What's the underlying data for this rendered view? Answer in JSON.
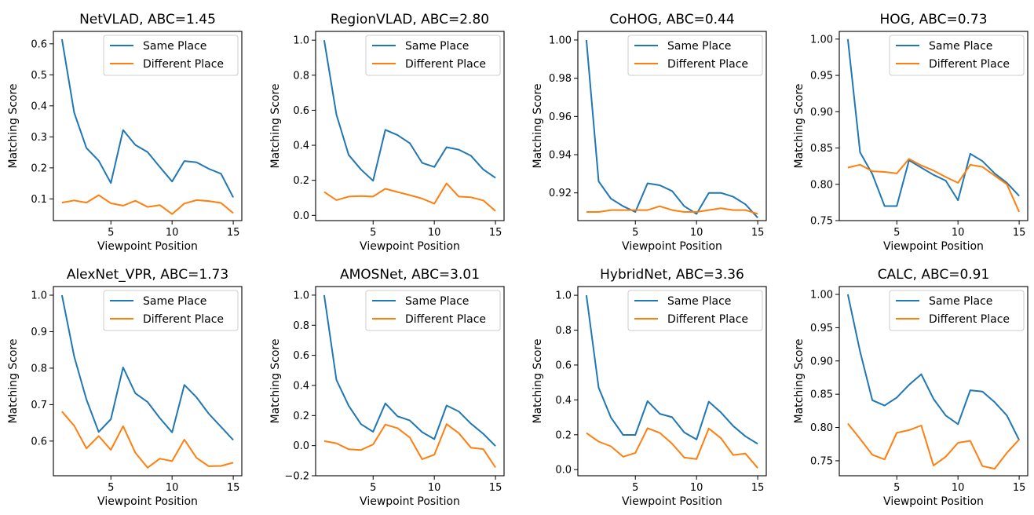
{
  "figure": {
    "line_colors": [
      "#1f77b4",
      "#ff7f0e"
    ]
  },
  "chart_data": [
    {
      "type": "line",
      "title": "NetVLAD, ABC=1.45",
      "xlabel": "Viewpoint Position",
      "ylabel": "Matching Score",
      "xlim": [
        0.3,
        15.7
      ],
      "ylim": [
        0.03,
        0.64
      ],
      "x_ticks": [
        5,
        10,
        15
      ],
      "y_ticks": [
        0.1,
        0.2,
        0.3,
        0.4,
        0.5,
        0.6
      ],
      "y_tick_labels": [
        "0.1",
        "0.2",
        "0.3",
        "0.4",
        "0.5",
        "0.6"
      ],
      "legend": "top-right",
      "grid": false,
      "x": [
        1,
        2,
        3,
        4,
        5,
        6,
        7,
        8,
        9,
        10,
        11,
        12,
        13,
        14,
        15
      ],
      "series": [
        {
          "name": "Same Place",
          "color": "#1f77b4",
          "values": [
            0.615,
            0.378,
            0.264,
            0.223,
            0.151,
            0.322,
            0.274,
            0.251,
            0.203,
            0.156,
            0.222,
            0.218,
            0.197,
            0.181,
            0.105
          ]
        },
        {
          "name": "Different Place",
          "color": "#ff7f0e",
          "values": [
            0.088,
            0.095,
            0.088,
            0.112,
            0.086,
            0.078,
            0.094,
            0.074,
            0.08,
            0.051,
            0.085,
            0.096,
            0.093,
            0.087,
            0.054
          ]
        }
      ]
    },
    {
      "type": "line",
      "title": "RegionVLAD, ABC=2.80",
      "xlabel": "Viewpoint Position",
      "ylabel": "Matching Score",
      "xlim": [
        0.3,
        15.7
      ],
      "ylim": [
        -0.03,
        1.05
      ],
      "x_ticks": [
        5,
        10,
        15
      ],
      "y_ticks": [
        0.0,
        0.2,
        0.4,
        0.6,
        0.8,
        1.0
      ],
      "y_tick_labels": [
        "0.0",
        "0.2",
        "0.4",
        "0.6",
        "0.8",
        "1.0"
      ],
      "legend": "top-right",
      "grid": false,
      "x": [
        1,
        2,
        3,
        4,
        5,
        6,
        7,
        8,
        9,
        10,
        11,
        12,
        13,
        14,
        15
      ],
      "series": [
        {
          "name": "Same Place",
          "color": "#1f77b4",
          "values": [
            1.0,
            0.575,
            0.345,
            0.262,
            0.197,
            0.488,
            0.458,
            0.412,
            0.3,
            0.276,
            0.389,
            0.375,
            0.34,
            0.262,
            0.214
          ]
        },
        {
          "name": "Different Place",
          "color": "#ff7f0e",
          "values": [
            0.133,
            0.087,
            0.107,
            0.11,
            0.107,
            0.152,
            0.133,
            0.115,
            0.096,
            0.067,
            0.183,
            0.107,
            0.103,
            0.085,
            0.025
          ]
        }
      ]
    },
    {
      "type": "line",
      "title": "CoHOG, ABC=0.44",
      "xlabel": "Viewpoint Position",
      "ylabel": "Matching Score",
      "xlim": [
        0.3,
        15.7
      ],
      "ylim": [
        0.9055,
        1.0045
      ],
      "x_ticks": [
        5,
        10,
        15
      ],
      "y_ticks": [
        0.92,
        0.94,
        0.96,
        0.98,
        1.0
      ],
      "y_tick_labels": [
        "0.92",
        "0.94",
        "0.96",
        "0.98",
        "1.00"
      ],
      "legend": "top-right",
      "grid": false,
      "x": [
        1,
        2,
        3,
        4,
        5,
        6,
        7,
        8,
        9,
        10,
        11,
        12,
        13,
        14,
        15
      ],
      "series": [
        {
          "name": "Same Place",
          "color": "#1f77b4",
          "values": [
            1.0,
            0.926,
            0.917,
            0.913,
            0.91,
            0.925,
            0.924,
            0.921,
            0.913,
            0.909,
            0.92,
            0.92,
            0.918,
            0.914,
            0.907
          ]
        },
        {
          "name": "Different Place",
          "color": "#ff7f0e",
          "values": [
            0.91,
            0.91,
            0.911,
            0.911,
            0.911,
            0.911,
            0.913,
            0.911,
            0.91,
            0.91,
            0.911,
            0.912,
            0.911,
            0.911,
            0.909
          ]
        }
      ]
    },
    {
      "type": "line",
      "title": "HOG, ABC=0.73",
      "xlabel": "Viewpoint Position",
      "ylabel": "Matching Score",
      "xlim": [
        0.3,
        15.7
      ],
      "ylim": [
        0.75,
        1.0106
      ],
      "x_ticks": [
        5,
        10,
        15
      ],
      "y_ticks": [
        0.75,
        0.8,
        0.85,
        0.9,
        0.95,
        1.0
      ],
      "y_tick_labels": [
        "0.75",
        "0.80",
        "0.85",
        "0.90",
        "0.95",
        "1.00"
      ],
      "legend": "top-right",
      "grid": false,
      "x": [
        1,
        2,
        3,
        4,
        5,
        6,
        7,
        8,
        9,
        10,
        11,
        12,
        13,
        14,
        15
      ],
      "series": [
        {
          "name": "Same Place",
          "color": "#1f77b4",
          "values": [
            1.0,
            0.844,
            0.814,
            0.77,
            0.77,
            0.833,
            0.823,
            0.813,
            0.805,
            0.778,
            0.842,
            0.832,
            0.815,
            0.802,
            0.784
          ]
        },
        {
          "name": "Different Place",
          "color": "#ff7f0e",
          "values": [
            0.823,
            0.827,
            0.818,
            0.817,
            0.815,
            0.835,
            0.826,
            0.819,
            0.81,
            0.802,
            0.827,
            0.824,
            0.812,
            0.8,
            0.762
          ]
        }
      ]
    },
    {
      "type": "line",
      "title": "AlexNet_VPR, ABC=1.73",
      "xlabel": "Viewpoint Position",
      "ylabel": "Matching Score",
      "xlim": [
        0.3,
        15.7
      ],
      "ylim": [
        0.505,
        1.0237
      ],
      "x_ticks": [
        5,
        10,
        15
      ],
      "y_ticks": [
        0.6,
        0.7,
        0.8,
        0.9,
        1.0
      ],
      "y_tick_labels": [
        "0.6",
        "0.7",
        "0.8",
        "0.9",
        "1.0"
      ],
      "legend": "top-right",
      "grid": false,
      "x": [
        1,
        2,
        3,
        4,
        5,
        6,
        7,
        8,
        9,
        10,
        11,
        12,
        13,
        14,
        15
      ],
      "series": [
        {
          "name": "Same Place",
          "color": "#1f77b4",
          "values": [
            1.0,
            0.832,
            0.714,
            0.625,
            0.66,
            0.802,
            0.731,
            0.707,
            0.663,
            0.624,
            0.754,
            0.72,
            0.675,
            0.639,
            0.603
          ]
        },
        {
          "name": "Different Place",
          "color": "#ff7f0e",
          "values": [
            0.681,
            0.642,
            0.58,
            0.614,
            0.576,
            0.641,
            0.568,
            0.527,
            0.552,
            0.545,
            0.604,
            0.554,
            0.531,
            0.532,
            0.541
          ]
        }
      ]
    },
    {
      "type": "line",
      "title": "AMOSNet, ABC=3.01",
      "xlabel": "Viewpoint Position",
      "ylabel": "Matching Score",
      "xlim": [
        0.3,
        15.7
      ],
      "ylim": [
        -0.2,
        1.057
      ],
      "x_ticks": [
        5,
        10,
        15
      ],
      "y_ticks": [
        -0.2,
        0.0,
        0.2,
        0.4,
        0.6,
        0.8,
        1.0
      ],
      "y_tick_labels": [
        "−0.2",
        "0.0",
        "0.2",
        "0.4",
        "0.6",
        "0.8",
        "1.0"
      ],
      "legend": "top-right",
      "grid": false,
      "x": [
        1,
        2,
        3,
        4,
        5,
        6,
        7,
        8,
        9,
        10,
        11,
        12,
        13,
        14,
        15
      ],
      "series": [
        {
          "name": "Same Place",
          "color": "#1f77b4",
          "values": [
            1.0,
            0.437,
            0.265,
            0.143,
            0.092,
            0.281,
            0.195,
            0.167,
            0.09,
            0.043,
            0.267,
            0.227,
            0.146,
            0.079,
            -0.003
          ]
        },
        {
          "name": "Different Place",
          "color": "#ff7f0e",
          "values": [
            0.03,
            0.016,
            -0.024,
            -0.029,
            0.008,
            0.14,
            0.116,
            0.054,
            -0.09,
            -0.06,
            0.143,
            0.083,
            -0.014,
            -0.023,
            -0.145
          ]
        }
      ]
    },
    {
      "type": "line",
      "title": "HybridNet, ABC=3.36",
      "xlabel": "Viewpoint Position",
      "ylabel": "Matching Score",
      "xlim": [
        0.3,
        15.7
      ],
      "ylim": [
        -0.035,
        1.05
      ],
      "x_ticks": [
        5,
        10,
        15
      ],
      "y_ticks": [
        0.0,
        0.2,
        0.4,
        0.6,
        0.8,
        1.0
      ],
      "y_tick_labels": [
        "0.0",
        "0.2",
        "0.4",
        "0.6",
        "0.8",
        "1.0"
      ],
      "legend": "top-right",
      "grid": false,
      "x": [
        1,
        2,
        3,
        4,
        5,
        6,
        7,
        8,
        9,
        10,
        11,
        12,
        13,
        14,
        15
      ],
      "series": [
        {
          "name": "Same Place",
          "color": "#1f77b4",
          "values": [
            1.0,
            0.47,
            0.299,
            0.199,
            0.199,
            0.393,
            0.32,
            0.301,
            0.213,
            0.173,
            0.39,
            0.328,
            0.25,
            0.191,
            0.148
          ]
        },
        {
          "name": "Different Place",
          "color": "#ff7f0e",
          "values": [
            0.21,
            0.161,
            0.134,
            0.074,
            0.096,
            0.238,
            0.211,
            0.149,
            0.069,
            0.061,
            0.236,
            0.18,
            0.084,
            0.092,
            0.009
          ]
        }
      ]
    },
    {
      "type": "line",
      "title": "CALC, ABC=0.91",
      "xlabel": "Viewpoint Position",
      "ylabel": "Matching Score",
      "xlim": [
        0.3,
        15.7
      ],
      "ylim": [
        0.7275,
        1.0118
      ],
      "x_ticks": [
        5,
        10,
        15
      ],
      "y_ticks": [
        0.75,
        0.8,
        0.85,
        0.9,
        0.95,
        1.0
      ],
      "y_tick_labels": [
        "0.75",
        "0.80",
        "0.85",
        "0.90",
        "0.95",
        "1.00"
      ],
      "legend": "top-right",
      "grid": false,
      "x": [
        1,
        2,
        3,
        4,
        5,
        6,
        7,
        8,
        9,
        10,
        11,
        12,
        13,
        14,
        15
      ],
      "series": [
        {
          "name": "Same Place",
          "color": "#1f77b4",
          "values": [
            1.0,
            0.914,
            0.841,
            0.833,
            0.845,
            0.864,
            0.88,
            0.843,
            0.818,
            0.805,
            0.856,
            0.854,
            0.838,
            0.818,
            0.781
          ]
        },
        {
          "name": "Different Place",
          "color": "#ff7f0e",
          "values": [
            0.806,
            0.783,
            0.759,
            0.752,
            0.792,
            0.796,
            0.803,
            0.743,
            0.756,
            0.777,
            0.78,
            0.742,
            0.738,
            0.762,
            0.782
          ]
        }
      ]
    }
  ]
}
